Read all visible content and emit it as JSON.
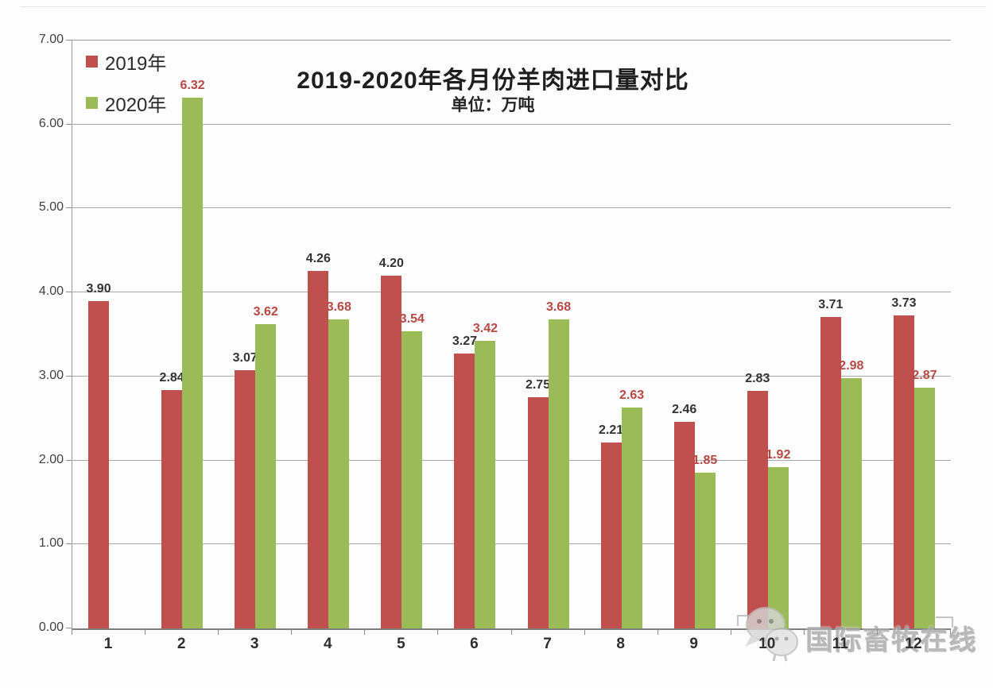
{
  "chart_data": {
    "type": "bar",
    "title": "2019-2020年各月份羊肉进口量对比",
    "subtitle": "单位：万吨",
    "categories": [
      "1",
      "2",
      "3",
      "4",
      "5",
      "6",
      "7",
      "8",
      "9",
      "10",
      "11",
      "12"
    ],
    "series": [
      {
        "name": "2019年",
        "color": "#C0504D",
        "label_color": "#333333",
        "values": [
          3.9,
          2.84,
          3.07,
          4.26,
          4.2,
          3.27,
          2.75,
          2.21,
          2.46,
          2.83,
          3.71,
          3.73
        ]
      },
      {
        "name": "2020年",
        "color": "#9BBB59",
        "label_color": "#B94743",
        "values": [
          null,
          6.32,
          3.62,
          3.68,
          3.54,
          3.42,
          3.68,
          2.63,
          1.85,
          1.92,
          2.98,
          2.87
        ]
      }
    ],
    "y_axis": {
      "min": 0,
      "max": 7,
      "step": 1,
      "tick_labels": [
        "0.00",
        "1.00",
        "2.00",
        "3.00",
        "4.00",
        "5.00",
        "6.00",
        "7.00"
      ]
    },
    "grid": true,
    "legend_position": "top-left",
    "value_label_decimals": 2
  },
  "watermark": {
    "text": "国际畜牧在线",
    "icon": "wechat-sheep-logo"
  }
}
